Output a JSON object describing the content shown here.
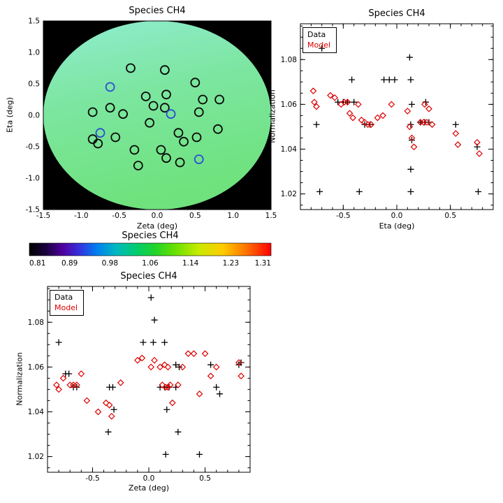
{
  "figure": {
    "background": "#ffffff"
  },
  "colors": {
    "data_marker": "#000000",
    "model_marker": "#dd0000",
    "map_background": "#000000",
    "axis": "#000000",
    "map_circle": "#0a0a0a",
    "map_circle_blue": "#2b4fd4"
  },
  "chart_data": [
    {
      "id": "map",
      "type": "scatter",
      "title": "Species CH4",
      "xlabel": "Zeta (deg)",
      "ylabel": "Eta (deg)",
      "xlim": [
        -1.5,
        1.5
      ],
      "ylim": [
        -1.5,
        1.5
      ],
      "xticks": [
        -1.5,
        -1.0,
        -0.5,
        0.0,
        0.5,
        1.0,
        1.5
      ],
      "xtick_labels": [
        "-1.5",
        "-1.0",
        "-0.5",
        "0.0",
        "0.5",
        "1.0",
        "1.5"
      ],
      "yticks": [
        -1.5,
        -1.0,
        -0.5,
        0.0,
        0.5,
        1.0,
        1.5
      ],
      "ytick_labels": [
        "-1.5",
        "-1.0",
        "-0.5",
        "0.0",
        "0.5",
        "1.0",
        "1.5"
      ],
      "disk_radius": 1.5,
      "disk_gradient": [
        {
          "pos": "0%",
          "color": "#90ecd0"
        },
        {
          "pos": "45%",
          "color": "#7ce6a0"
        },
        {
          "pos": "100%",
          "color": "#6fe27d"
        }
      ],
      "points": [
        [
          -0.35,
          0.75
        ],
        [
          0.1,
          0.72
        ],
        [
          -0.62,
          0.45,
          1
        ],
        [
          0.5,
          0.52
        ],
        [
          -0.15,
          0.3
        ],
        [
          0.12,
          0.33
        ],
        [
          0.6,
          0.25
        ],
        [
          0.82,
          0.25
        ],
        [
          -0.85,
          0.05
        ],
        [
          -0.62,
          0.12
        ],
        [
          -0.45,
          0.02
        ],
        [
          -0.05,
          0.15
        ],
        [
          0.1,
          0.12
        ],
        [
          0.18,
          0.02,
          1
        ],
        [
          0.55,
          0.05
        ],
        [
          -0.1,
          -0.12
        ],
        [
          -0.75,
          -0.28,
          1
        ],
        [
          -0.85,
          -0.38
        ],
        [
          -0.78,
          -0.45
        ],
        [
          -0.55,
          -0.35
        ],
        [
          0.28,
          -0.28
        ],
        [
          0.35,
          -0.42
        ],
        [
          0.52,
          -0.35
        ],
        [
          0.8,
          -0.22
        ],
        [
          -0.3,
          -0.55
        ],
        [
          0.05,
          -0.55
        ],
        [
          0.12,
          -0.68
        ],
        [
          -0.25,
          -0.8
        ],
        [
          0.3,
          -0.75
        ],
        [
          0.55,
          -0.7,
          1
        ]
      ]
    },
    {
      "id": "colorbar",
      "type": "heatmap",
      "title": "Species CH4",
      "tick_labels": [
        "0.81",
        "0.89",
        "0.98",
        "1.06",
        "1.14",
        "1.23",
        "1.31"
      ],
      "gradient": [
        {
          "pos": "0%",
          "color": "#000000"
        },
        {
          "pos": "7%",
          "color": "#1a0040"
        },
        {
          "pos": "14%",
          "color": "#5000a0"
        },
        {
          "pos": "21%",
          "color": "#3333e0"
        },
        {
          "pos": "28%",
          "color": "#0080f0"
        },
        {
          "pos": "36%",
          "color": "#00b8c0"
        },
        {
          "pos": "44%",
          "color": "#00cc70"
        },
        {
          "pos": "52%",
          "color": "#22d42a"
        },
        {
          "pos": "60%",
          "color": "#66e000"
        },
        {
          "pos": "70%",
          "color": "#c8ea00"
        },
        {
          "pos": "80%",
          "color": "#ffcc00"
        },
        {
          "pos": "90%",
          "color": "#ff7000"
        },
        {
          "pos": "100%",
          "color": "#ff0000"
        }
      ]
    },
    {
      "id": "normalization-vs-eta",
      "type": "scatter",
      "title": "Species CH4",
      "xlabel": "Eta (deg)",
      "ylabel": "Normalization",
      "xlim": [
        -0.9,
        0.9
      ],
      "ylim": [
        1.013,
        1.096
      ],
      "xticks": [
        -0.5,
        0.0,
        0.5
      ],
      "xtick_labels": [
        "-0.5",
        "0.0",
        "0.5"
      ],
      "yticks": [
        1.02,
        1.04,
        1.06,
        1.08
      ],
      "ytick_labels": [
        "1.02",
        "1.04",
        "1.06",
        "1.08"
      ],
      "xminor": 0.1,
      "yminor": 0.005,
      "legend": [
        {
          "label": "Data",
          "color": "#000000"
        },
        {
          "label": "Model",
          "color": "#dd0000"
        }
      ],
      "series": [
        {
          "name": "Data",
          "marker": "plus",
          "color": "#000000",
          "points": [
            [
              -0.7,
              1.085
            ],
            [
              -0.75,
              1.051
            ],
            [
              -0.72,
              1.021
            ],
            [
              -0.55,
              1.061
            ],
            [
              -0.5,
              1.061
            ],
            [
              -0.46,
              1.061
            ],
            [
              -0.4,
              1.061
            ],
            [
              -0.42,
              1.071
            ],
            [
              -0.35,
              1.021
            ],
            [
              -0.3,
              1.051
            ],
            [
              -0.25,
              1.051
            ],
            [
              -0.12,
              1.071
            ],
            [
              -0.07,
              1.071
            ],
            [
              -0.02,
              1.071
            ],
            [
              0.12,
              1.081
            ],
            [
              0.13,
              1.071
            ],
            [
              0.14,
              1.06
            ],
            [
              0.13,
              1.051
            ],
            [
              0.14,
              1.044
            ],
            [
              0.13,
              1.031
            ],
            [
              0.13,
              1.021
            ],
            [
              0.22,
              1.052
            ],
            [
              0.26,
              1.052
            ],
            [
              0.3,
              1.052
            ],
            [
              0.27,
              1.061
            ],
            [
              0.55,
              1.051
            ],
            [
              0.75,
              1.041
            ],
            [
              0.76,
              1.021
            ]
          ]
        },
        {
          "name": "Model",
          "marker": "diamond",
          "color": "#dd0000",
          "points": [
            [
              -0.78,
              1.066
            ],
            [
              -0.77,
              1.061
            ],
            [
              -0.75,
              1.059
            ],
            [
              -0.62,
              1.064
            ],
            [
              -0.58,
              1.063
            ],
            [
              -0.52,
              1.06
            ],
            [
              -0.49,
              1.061
            ],
            [
              -0.46,
              1.061
            ],
            [
              -0.44,
              1.056
            ],
            [
              -0.41,
              1.054
            ],
            [
              -0.36,
              1.06
            ],
            [
              -0.33,
              1.053
            ],
            [
              -0.3,
              1.052
            ],
            [
              -0.27,
              1.051
            ],
            [
              -0.24,
              1.051
            ],
            [
              -0.18,
              1.054
            ],
            [
              -0.13,
              1.055
            ],
            [
              -0.05,
              1.06
            ],
            [
              0.1,
              1.057
            ],
            [
              0.12,
              1.05
            ],
            [
              0.14,
              1.045
            ],
            [
              0.16,
              1.041
            ],
            [
              0.22,
              1.052
            ],
            [
              0.25,
              1.052
            ],
            [
              0.28,
              1.052
            ],
            [
              0.26,
              1.06
            ],
            [
              0.3,
              1.058
            ],
            [
              0.33,
              1.051
            ],
            [
              0.55,
              1.047
            ],
            [
              0.57,
              1.042
            ],
            [
              0.75,
              1.043
            ],
            [
              0.77,
              1.038
            ]
          ]
        }
      ]
    },
    {
      "id": "normalization-vs-zeta",
      "type": "scatter",
      "title": "Species CH4",
      "xlabel": "Zeta (deg)",
      "ylabel": "Normalization",
      "xlim": [
        -0.9,
        0.9
      ],
      "ylim": [
        1.013,
        1.096
      ],
      "xticks": [
        -0.5,
        0.0,
        0.5
      ],
      "xtick_labels": [
        "-0.5",
        "0.0",
        "0.5"
      ],
      "yticks": [
        1.02,
        1.04,
        1.06,
        1.08
      ],
      "ytick_labels": [
        "1.02",
        "1.04",
        "1.06",
        "1.08"
      ],
      "xminor": 0.1,
      "yminor": 0.005,
      "legend": [
        {
          "label": "Data",
          "color": "#000000"
        },
        {
          "label": "Model",
          "color": "#dd0000"
        }
      ],
      "series": [
        {
          "name": "Data",
          "marker": "plus",
          "color": "#000000",
          "points": [
            [
              -0.8,
              1.071
            ],
            [
              -0.74,
              1.057
            ],
            [
              -0.71,
              1.057
            ],
            [
              -0.67,
              1.051
            ],
            [
              -0.64,
              1.051
            ],
            [
              -0.35,
              1.051
            ],
            [
              -0.32,
              1.051
            ],
            [
              -0.36,
              1.031
            ],
            [
              -0.31,
              1.041
            ],
            [
              -0.05,
              1.071
            ],
            [
              0.02,
              1.091
            ],
            [
              0.05,
              1.081
            ],
            [
              0.04,
              1.071
            ],
            [
              0.14,
              1.071
            ],
            [
              0.1,
              1.051
            ],
            [
              0.14,
              1.051
            ],
            [
              0.18,
              1.051
            ],
            [
              0.24,
              1.051
            ],
            [
              0.16,
              1.041
            ],
            [
              0.15,
              1.021
            ],
            [
              0.24,
              1.061
            ],
            [
              0.27,
              1.06
            ],
            [
              0.26,
              1.031
            ],
            [
              0.45,
              1.021
            ],
            [
              0.55,
              1.061
            ],
            [
              0.6,
              1.051
            ],
            [
              0.63,
              1.048
            ],
            [
              0.8,
              1.061
            ],
            [
              0.82,
              1.062
            ]
          ]
        },
        {
          "name": "Model",
          "marker": "diamond",
          "color": "#dd0000",
          "points": [
            [
              -0.82,
              1.052
            ],
            [
              -0.8,
              1.05
            ],
            [
              -0.76,
              1.055
            ],
            [
              -0.7,
              1.052
            ],
            [
              -0.67,
              1.052
            ],
            [
              -0.64,
              1.052
            ],
            [
              -0.6,
              1.057
            ],
            [
              -0.55,
              1.045
            ],
            [
              -0.45,
              1.04
            ],
            [
              -0.38,
              1.044
            ],
            [
              -0.35,
              1.043
            ],
            [
              -0.33,
              1.038
            ],
            [
              -0.25,
              1.053
            ],
            [
              -0.1,
              1.063
            ],
            [
              -0.06,
              1.064
            ],
            [
              0.02,
              1.06
            ],
            [
              0.05,
              1.063
            ],
            [
              0.1,
              1.06
            ],
            [
              0.12,
              1.052
            ],
            [
              0.15,
              1.051
            ],
            [
              0.17,
              1.051
            ],
            [
              0.19,
              1.052
            ],
            [
              0.14,
              1.061
            ],
            [
              0.17,
              1.06
            ],
            [
              0.21,
              1.044
            ],
            [
              0.26,
              1.052
            ],
            [
              0.3,
              1.06
            ],
            [
              0.35,
              1.066
            ],
            [
              0.4,
              1.066
            ],
            [
              0.45,
              1.048
            ],
            [
              0.5,
              1.066
            ],
            [
              0.55,
              1.056
            ],
            [
              0.6,
              1.06
            ],
            [
              0.8,
              1.062
            ],
            [
              0.82,
              1.056
            ]
          ]
        }
      ]
    }
  ]
}
